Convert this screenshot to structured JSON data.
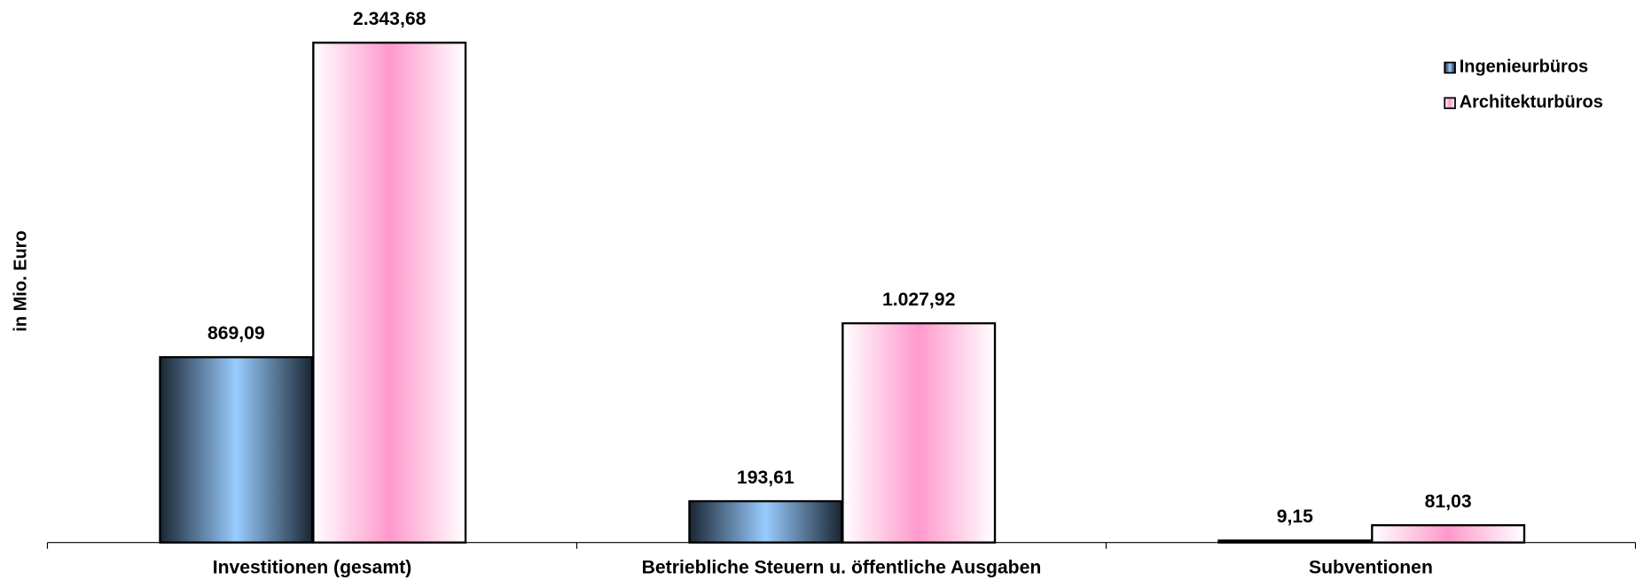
{
  "chart_data": {
    "type": "bar",
    "y_label": "in Mio. Euro",
    "categories": [
      "Investitionen (gesamt)",
      "Betriebliche Steuern u. öffentliche Ausgaben",
      "Subventionen"
    ],
    "series": [
      {
        "name": "Ingenieurbüros",
        "color": "#99ccff",
        "values": [
          869.09,
          193.61,
          9.15
        ],
        "value_labels": [
          "869,09",
          "193,61",
          "9,15"
        ]
      },
      {
        "name": "Architekturbüros",
        "color": "#ff99cc",
        "values": [
          2343.68,
          1027.92,
          81.03
        ],
        "value_labels": [
          "2.343,68",
          "1.027,92",
          "81,03"
        ]
      }
    ],
    "legend": "upper right"
  }
}
